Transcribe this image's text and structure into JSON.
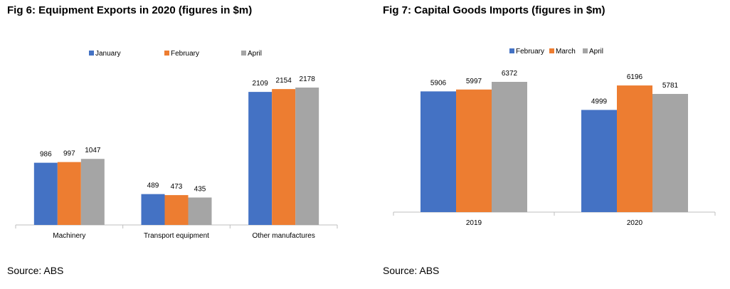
{
  "colors": {
    "blue": "#4472C4",
    "orange": "#ED7D31",
    "gray": "#A5A5A5",
    "axis": "#bfbfbf"
  },
  "fig6": {
    "title": "Fig 6: Equipment Exports in 2020 (figures in $m)",
    "source": "Source: ABS",
    "chart_data": {
      "type": "bar",
      "categories": [
        "Machinery",
        "Transport equipment",
        "Other manufactures"
      ],
      "series": [
        {
          "name": "January",
          "values": [
            986,
            489,
            2109
          ]
        },
        {
          "name": "February",
          "values": [
            997,
            473,
            2154
          ]
        },
        {
          "name": "April",
          "values": [
            1047,
            435,
            2178
          ]
        }
      ],
      "legend": "top",
      "grid": false
    }
  },
  "fig7": {
    "title": "Fig 7: Capital Goods Imports (figures in $m)",
    "source": "Source: ABS",
    "chart_data": {
      "type": "bar",
      "categories": [
        "2019",
        "2020"
      ],
      "series": [
        {
          "name": "February",
          "values": [
            5906,
            4999
          ]
        },
        {
          "name": "March",
          "values": [
            5997,
            6196
          ]
        },
        {
          "name": "April",
          "values": [
            6372,
            5781
          ]
        }
      ],
      "legend": "top",
      "grid": false
    }
  }
}
